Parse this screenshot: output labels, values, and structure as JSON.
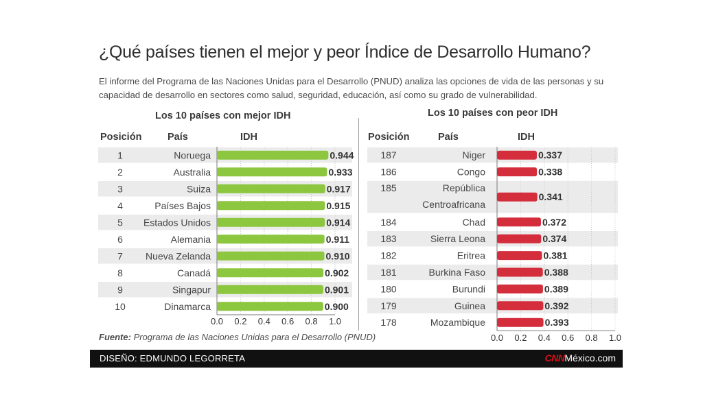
{
  "title": "¿Qué países tienen el mejor y peor Índice de Desarrollo Humano?",
  "subtitle": "El informe del Programa de las Naciones Unidas para el Desarrollo (PNUD) analiza las opciones de vida de las personas y su capacidad de desarrollo en sectores como salud, seguridad, educación, así como su grado de vulnerabilidad.",
  "colors": {
    "best_bar": "#8dc63f",
    "worst_bar": "#d42e3c",
    "stripe": "#ebebeb",
    "footer": "#111111",
    "brand_red": "#d8101a"
  },
  "columns": {
    "position": "Posición",
    "country": "País",
    "idh": "IDH"
  },
  "chart_data": [
    {
      "type": "bar",
      "orientation": "horizontal",
      "title": "Los 10 países con mejor IDH",
      "positions": [
        "1",
        "2",
        "3",
        "4",
        "5",
        "6",
        "7",
        "8",
        "9",
        "10"
      ],
      "categories": [
        "Noruega",
        "Australia",
        "Suiza",
        "Países Bajos",
        "Estados Unidos",
        "Alemania",
        "Nueva Zelanda",
        "Canadá",
        "Singapur",
        "Dinamarca"
      ],
      "values": [
        0.944,
        0.933,
        0.917,
        0.915,
        0.914,
        0.911,
        0.91,
        0.902,
        0.901,
        0.9
      ],
      "value_labels": [
        "0.944",
        "0.933",
        "0.917",
        "0.915",
        "0.914",
        "0.911",
        "0.910",
        "0.902",
        "0.901",
        "0.900"
      ],
      "xlim": [
        0,
        1
      ],
      "xticks": [
        "0.0",
        "0.2",
        "0.4",
        "0.6",
        "0.8",
        "1.0"
      ],
      "grid": true
    },
    {
      "type": "bar",
      "orientation": "horizontal",
      "title": "Los 10 países con peor IDH",
      "positions": [
        "187",
        "186",
        "185",
        "184",
        "183",
        "182",
        "181",
        "180",
        "179",
        "178"
      ],
      "categories": [
        "Niger",
        "Congo",
        "República Centroafricana",
        "Chad",
        "Sierra Leona",
        "Eritrea",
        "Burkina Faso",
        "Burundi",
        "Guinea",
        "Mozambique"
      ],
      "category_lines": [
        [
          "Niger"
        ],
        [
          "Congo"
        ],
        [
          "República",
          "Centroafricana"
        ],
        [
          "Chad"
        ],
        [
          "Sierra Leona"
        ],
        [
          "Eritrea"
        ],
        [
          "Burkina Faso"
        ],
        [
          "Burundi"
        ],
        [
          "Guinea"
        ],
        [
          "Mozambique"
        ]
      ],
      "values": [
        0.337,
        0.338,
        0.341,
        0.372,
        0.374,
        0.381,
        0.388,
        0.389,
        0.392,
        0.393
      ],
      "value_labels": [
        "0.337",
        "0.338",
        "0.341",
        "0.372",
        "0.374",
        "0.381",
        "0.388",
        "0.389",
        "0.392",
        "0.393"
      ],
      "xlim": [
        0,
        1
      ],
      "xticks": [
        "0.0",
        "0.2",
        "0.4",
        "0.6",
        "0.8",
        "1.0"
      ],
      "grid": true
    }
  ],
  "source": {
    "label": "Fuente:",
    "text": "Programa de las Naciones Unidas para el Desarrollo (PNUD)"
  },
  "footer": {
    "credit": "DISEÑO: EDMUNDO LEGORRETA",
    "brand_cnn": "CNN",
    "brand_rest": "México.com"
  }
}
